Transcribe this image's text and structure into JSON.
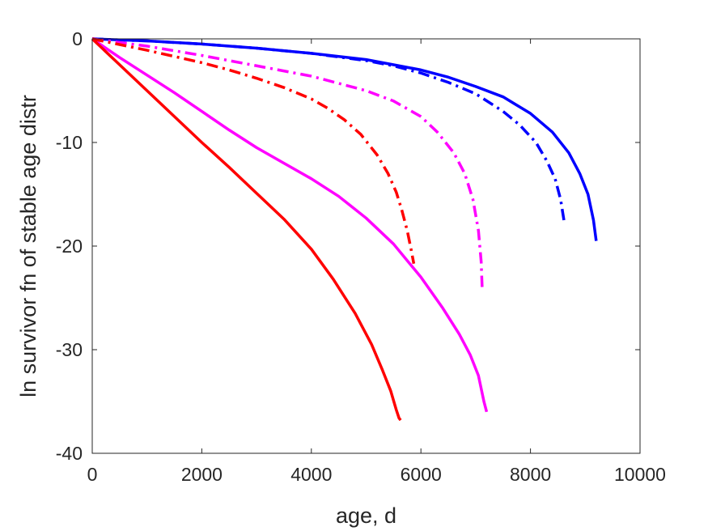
{
  "chart_data": {
    "type": "line",
    "xlabel": "age, d",
    "ylabel": "ln survivor fn of stable age distr",
    "xlim": [
      0,
      10000
    ],
    "ylim": [
      -40,
      0
    ],
    "xticks": [
      0,
      2000,
      4000,
      6000,
      8000,
      10000
    ],
    "yticks": [
      0,
      -10,
      -20,
      -30,
      -40
    ],
    "xtick_labels": [
      "0",
      "2000",
      "4000",
      "6000",
      "8000",
      "10000"
    ],
    "ytick_labels": [
      "0",
      "-10",
      "-20",
      "-30",
      "-40"
    ],
    "grid": false,
    "box": true,
    "series": [
      {
        "color": "#0000ff",
        "style": "solid",
        "x": [
          0,
          1000,
          2000,
          3000,
          4000,
          5000,
          5500,
          6000,
          6500,
          7000,
          7500,
          8000,
          8400,
          8700,
          8900,
          9050,
          9150,
          9200
        ],
        "y": [
          0,
          -0.2,
          -0.5,
          -0.9,
          -1.4,
          -2.0,
          -2.5,
          -3.0,
          -3.7,
          -4.6,
          -5.6,
          -7.2,
          -9.0,
          -11.0,
          -13.0,
          -15.0,
          -17.5,
          -19.5
        ]
      },
      {
        "color": "#0000ff",
        "style": "dashdot",
        "x": [
          0,
          1000,
          2000,
          3000,
          4000,
          5000,
          5500,
          6000,
          6500,
          7000,
          7500,
          7800,
          8100,
          8300,
          8450,
          8550,
          8620
        ],
        "y": [
          0,
          -0.2,
          -0.5,
          -0.9,
          -1.4,
          -2.1,
          -2.6,
          -3.3,
          -4.2,
          -5.3,
          -7.0,
          -8.3,
          -10.0,
          -11.8,
          -13.5,
          -15.5,
          -17.8
        ]
      },
      {
        "color": "#ff00ff",
        "style": "solid",
        "x": [
          0,
          500,
          1000,
          1500,
          2000,
          2500,
          3000,
          3500,
          4000,
          4500,
          5000,
          5500,
          6000,
          6400,
          6700,
          6900,
          7050,
          7150,
          7200
        ],
        "y": [
          0,
          -1.8,
          -3.5,
          -5.2,
          -7.0,
          -8.8,
          -10.5,
          -12.0,
          -13.5,
          -15.2,
          -17.3,
          -19.8,
          -23.0,
          -26.0,
          -28.5,
          -30.5,
          -32.5,
          -35.0,
          -36.0
        ]
      },
      {
        "color": "#ff00ff",
        "style": "dashdot",
        "x": [
          0,
          1000,
          2000,
          3000,
          4000,
          5000,
          5500,
          6000,
          6300,
          6600,
          6800,
          6950,
          7050,
          7100,
          7120
        ],
        "y": [
          0,
          -0.7,
          -1.6,
          -2.6,
          -3.6,
          -5.0,
          -6.0,
          -7.5,
          -9.0,
          -11.0,
          -13.0,
          -15.5,
          -18.5,
          -21.5,
          -24.3
        ]
      },
      {
        "color": "#ff0000",
        "style": "solid",
        "x": [
          0,
          500,
          1000,
          1500,
          2000,
          2500,
          3000,
          3500,
          4000,
          4400,
          4800,
          5100,
          5300,
          5450,
          5550,
          5600,
          5630
        ],
        "y": [
          0,
          -2.5,
          -5.0,
          -7.5,
          -10.0,
          -12.4,
          -14.9,
          -17.4,
          -20.3,
          -23.2,
          -26.5,
          -29.5,
          -32.0,
          -34.0,
          -35.8,
          -36.6,
          -36.8
        ]
      },
      {
        "color": "#ff0000",
        "style": "dashdot",
        "x": [
          0,
          1000,
          2000,
          2500,
          3000,
          3500,
          4000,
          4300,
          4600,
          4900,
          5200,
          5400,
          5550,
          5650,
          5750,
          5820,
          5870
        ],
        "y": [
          0,
          -1.1,
          -2.3,
          -3.0,
          -3.8,
          -4.7,
          -5.8,
          -6.7,
          -7.8,
          -9.2,
          -11.2,
          -13.0,
          -14.8,
          -16.5,
          -18.5,
          -20.3,
          -21.7
        ]
      }
    ]
  }
}
